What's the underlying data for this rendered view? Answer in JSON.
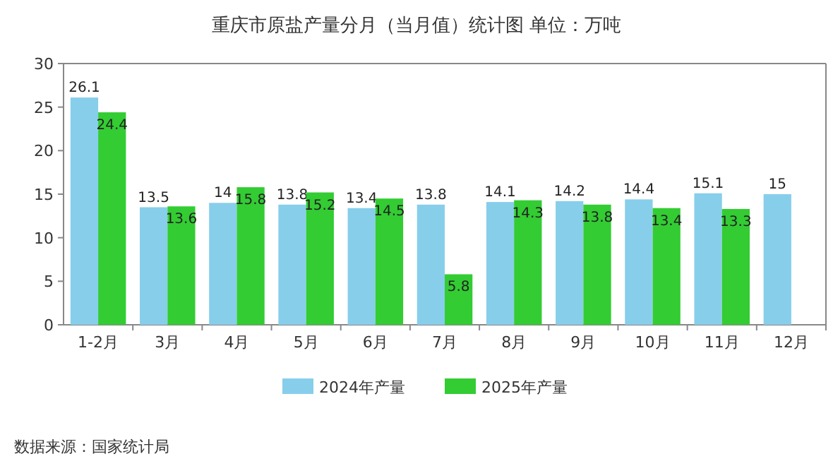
{
  "chart_data": {
    "type": "bar",
    "title": "重庆市原盐产量分月（当月值）统计图 单位：万吨",
    "categories": [
      "1-2月",
      "3月",
      "4月",
      "5月",
      "6月",
      "7月",
      "8月",
      "9月",
      "10月",
      "11月",
      "12月"
    ],
    "series": [
      {
        "name": "2024年产量",
        "color": "#87ceeb",
        "values": [
          26.1,
          13.5,
          14,
          13.8,
          13.4,
          13.8,
          14.1,
          14.2,
          14.4,
          15.1,
          15
        ]
      },
      {
        "name": "2025年产量",
        "color": "#33cc33",
        "values": [
          24.4,
          13.6,
          15.8,
          15.2,
          14.5,
          5.8,
          14.3,
          13.8,
          13.4,
          13.3,
          null
        ]
      }
    ],
    "ylim": [
      0,
      30
    ],
    "yticks": [
      0,
      5,
      10,
      15,
      20,
      25,
      30
    ],
    "data_labels": true,
    "legend": "bottom",
    "grid": false,
    "annotations": [
      "数据来源：国家统计局"
    ]
  }
}
